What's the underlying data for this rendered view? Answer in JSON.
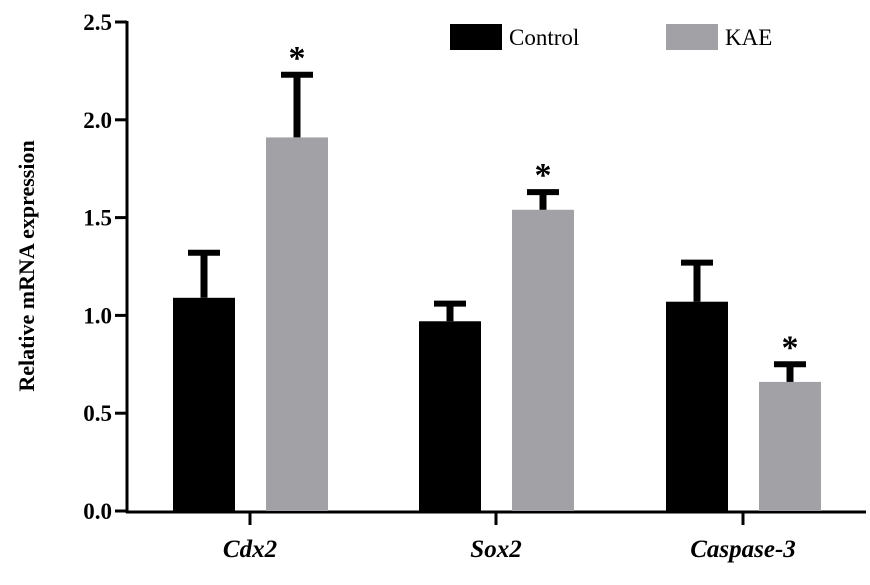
{
  "chart_data": {
    "type": "bar",
    "title": "",
    "xlabel": "",
    "ylabel": "Relative mRNA expression",
    "ylim": [
      0,
      2.5
    ],
    "yticks": [
      "0.0",
      "0.5",
      "1.0",
      "1.5",
      "2.0",
      "2.5"
    ],
    "categories": [
      "Cdx2",
      "Sox2",
      "Caspase-3"
    ],
    "series": [
      {
        "name": "Control",
        "color": "#000000",
        "values": [
          1.09,
          0.97,
          1.07
        ],
        "error": [
          0.23,
          0.09,
          0.2
        ],
        "significant": [
          false,
          false,
          false
        ]
      },
      {
        "name": "KAE",
        "color": "#a2a1a5",
        "values": [
          1.91,
          1.54,
          0.66
        ],
        "error": [
          0.32,
          0.09,
          0.09
        ],
        "significant": [
          true,
          true,
          true
        ]
      }
    ],
    "significance_marker": "*",
    "legend_position": "top-right",
    "grid": false
  }
}
